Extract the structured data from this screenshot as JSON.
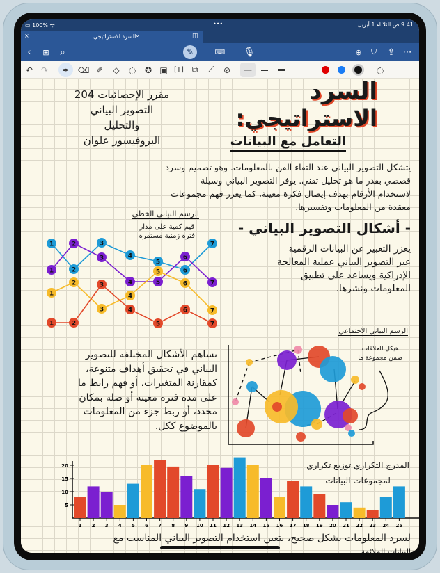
{
  "status_bar": {
    "time": "9:41",
    "date": "ص  الثلاثاء 1 أبريل",
    "battery": "100%",
    "dots": "•••"
  },
  "tab": {
    "title": "السرد الاستراتيجي",
    "chevron": "⌄",
    "close": "×"
  },
  "toolbar": {
    "left_icons": [
      "back-chevron-icon",
      "grid-icon",
      "search-icon"
    ],
    "center_icons": [
      "pen-mode-icon",
      "keyboard-icon",
      "microphone-icon"
    ],
    "right_icons": [
      "add-page-icon",
      "bookmark-icon",
      "share-icon",
      "more-icon"
    ]
  },
  "tools": {
    "items": [
      "undo-icon",
      "redo-icon",
      "pen-icon",
      "eraser-icon",
      "highlighter-icon",
      "shapes-icon",
      "lasso-icon",
      "sticker-icon",
      "image-icon",
      "textbox-icon",
      "screenshot-icon",
      "ruler-icon",
      "more-tools-icon"
    ],
    "colors": [
      "#e00000",
      "#1a7cf5",
      "#111111"
    ],
    "accent": "#2b5797"
  },
  "note": {
    "course": [
      "مقرر الإحصائيات 204",
      "التصوير البياني",
      "والتحليل",
      "البروفيسور علوان"
    ],
    "title_line1": "السرد",
    "title_line2": "الاستراتيجي:",
    "subtitle": "التعامل مع البيانات",
    "para1": [
      "يتشكل التصوير البياني عند التقاء الفن بالمعلومات. وهو تصميم وسرد",
      "قصصي بقدر ما هو تحليل تقني.  يوفر التصوير البياني وسيلة",
      "لاستخدام الأرقام بهدف إيصال فكرة معينة، كما يعزز فهم مجموعات",
      "معقدة من المعلومات وتفسيرها."
    ],
    "heading2": "- أشكال التصوير البياني -",
    "para2": [
      "يعزز التعبير عن البيانات الرقمية",
      "عبر التصوير البياني عملية المعالجة",
      "الإدراكية ويساعد على تطبيق",
      "المعلومات ونشرها."
    ],
    "line_chart_title": "الرسم البياني الخطي",
    "line_chart_caption": [
      "قيم كمية على مدار",
      "فترة زمنية مستمرة"
    ],
    "para3": [
      "تساهم الأشكال المختلفة للتصوير",
      "البياني في تحقيق أهداف متنوعة،",
      "كمقارنة المتغيرات، أو فهم رابط ما",
      "على مدة فترة معينة أو صلة بمكان",
      "محدد، أو ربط جزء من المعلومات",
      "بالموضوع ككل."
    ],
    "network_title": "الرسم البياني الاجتماعي",
    "network_caption": [
      "هيكل للعلاقات",
      "ضمن مجموعة ما"
    ],
    "histogram_caption": [
      "المدرج التكراري  توزيع تكراري",
      "لمجموعات البيانات"
    ],
    "para4": [
      "لسرد المعلومات بشكل صحيح، يتعين استخدام التصوير البياني المناسب مع",
      "البيانات الملائمة."
    ]
  },
  "chart_data": [
    {
      "type": "line",
      "title": "الرسم البياني الخطي",
      "x": [
        1,
        2,
        3,
        4,
        5,
        6,
        7
      ],
      "series": [
        {
          "color": "#1e9bd7",
          "values": [
            12.3,
            8.6,
            12.4,
            10.6,
            9.7,
            8.5,
            12.3
          ]
        },
        {
          "color": "#7b1fd0",
          "values": [
            8.5,
            12.3,
            10.3,
            6.8,
            6.8,
            10.4,
            6.7
          ]
        },
        {
          "color": "#f7bb2a",
          "values": [
            5.2,
            6.7,
            2.9,
            4.8,
            8.3,
            6.6,
            2.7
          ]
        },
        {
          "color": "#e2492a",
          "values": [
            0.9,
            0.9,
            6.4,
            2.8,
            0.8,
            2.8,
            0.8
          ]
        }
      ],
      "ylim": [
        0,
        13
      ]
    },
    {
      "type": "bar",
      "title": "المدرج التكراري",
      "categories": [
        "1",
        "2",
        "3",
        "4",
        "5",
        "6",
        "7",
        "8",
        "9",
        "10",
        "11",
        "12",
        "13",
        "14",
        "15",
        "16",
        "17",
        "18",
        "19",
        "20",
        "21",
        "22",
        "23",
        "24",
        "25"
      ],
      "values": [
        8,
        12,
        10,
        5,
        13,
        20,
        22,
        19.5,
        16,
        11,
        20,
        19,
        23,
        20,
        15,
        8,
        14,
        12,
        9,
        5,
        6,
        4,
        3,
        8,
        12
      ],
      "colors": [
        "#e2492a",
        "#7b1fd0",
        "#7b1fd0",
        "#f7bb2a",
        "#1e9bd7",
        "#f7bb2a",
        "#e2492a",
        "#e2492a",
        "#7b1fd0",
        "#1e9bd7",
        "#e2492a",
        "#7b1fd0",
        "#1e9bd7",
        "#f7bb2a",
        "#7b1fd0",
        "#f7bb2a",
        "#e2492a",
        "#1e9bd7",
        "#e2492a",
        "#7b1fd0",
        "#1e9bd7",
        "#f7bb2a",
        "#e2492a",
        "#1e9bd7",
        "#1e9bd7"
      ],
      "yticks": [
        "5",
        "10",
        "15",
        "20"
      ],
      "ylim": [
        0,
        24
      ]
    }
  ]
}
